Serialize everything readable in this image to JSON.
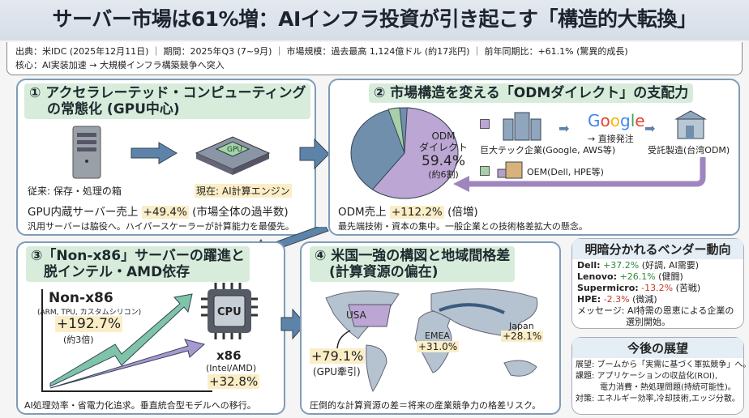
{
  "title": "サーバー市場は61%増：AIインフラ投資が引き起こす「構造的大転換」",
  "info": {
    "line1": "出典：米IDC (2025年12月11日) ｜ 期間：2025年Q3 (7~9月) ｜ 市場規模：過去最高 1,124億ドル (約17兆円) ｜ 前年同期比：+61.1% (驚異的成長)",
    "line2": "核心：AI実装加速 → 大規模インフラ構築競争へ突入"
  },
  "p1": {
    "title1": "① アクセラレーテッド・コンピューティング",
    "title2": "の常態化 (GPU中心)",
    "old_label": "従来: 保存・処理の箱",
    "new_label": "現在: AI計算エンジン",
    "gpu_chip": "GPU",
    "stat_prefix": "GPU内蔵サーバー売上",
    "stat_value": "+49.4%",
    "stat_suffix": "(市場全体の過半数)",
    "note": "汎用サーバーは脇役へ。ハイパースケーラーが計算能力を最優先。"
  },
  "p2": {
    "title": "② 市場構造を変える「ODMダイレクト」の支配力",
    "pie_label1": "ODM",
    "pie_label2": "ダイレクト",
    "pie_value": "59.4%",
    "pie_sub": "(約6割)",
    "pie_share": 59.4,
    "big_tech": "巨大テック企業(Google, AWS等)",
    "google": "Google",
    "direct": "→ 直接発注",
    "odm": "受託製造(台湾ODM)",
    "oem": "OEM(Dell, HPE等)",
    "stat_prefix": "ODM売上",
    "stat_value": "+112.2%",
    "stat_suffix": "(倍増)",
    "note": "最先端技術・資本の集中。一般企業との技術格差拡大の懸念。",
    "colors": {
      "odm": "#bca6d4",
      "oem": "#a8cfa8",
      "other": "#6f8fad"
    }
  },
  "p3": {
    "title1": "③「Non-x86」サーバーの躍進と",
    "title2": "脱インテル・AMD依存",
    "nonx86": "Non-x86",
    "nonx86_sub": "(ARM, TPU, カスタムシリコン)",
    "nonx86_value": "+192.7%",
    "nonx86_note": "(約3倍)",
    "cpu": "CPU",
    "x86": "x86",
    "x86_sub": "(Intel/AMD)",
    "x86_value": "+32.8%",
    "note": "AI処理効率・省電力化追求。垂直統合型モデルへの移行。"
  },
  "p4": {
    "title1": "④ 米国一強の構図と地域間格差",
    "title2": "(計算資源の偏在)",
    "usa": "USA",
    "usa_value": "+79.1%",
    "usa_note": "(GPU牽引)",
    "emea": "EMEA",
    "emea_value": "+31.0%",
    "japan": "Japan",
    "japan_value": "+28.1%",
    "note": "圧倒的な計算資源の差＝将来の産業競争力の格差リスク。"
  },
  "vendors": {
    "title": "明暗分かれるベンダー動向",
    "items": [
      {
        "name": "Dell:",
        "value": "+37.2%",
        "note": "(好調, AI需要)",
        "trend": "up"
      },
      {
        "name": "Lenovo:",
        "value": "+26.1%",
        "note": "(健闘)",
        "trend": "up"
      },
      {
        "name": "Supermicro:",
        "value": "-13.2%",
        "note": "(苦戦)",
        "trend": "down"
      },
      {
        "name": "HPE:",
        "value": "-2.3%",
        "note": "(微減)",
        "trend": "down"
      }
    ],
    "message1": "メッセージ: AI特需の恩恵による企業の",
    "message2": "選別開始。"
  },
  "outlook": {
    "title": "今後の展望",
    "l1": "展望: ブームから「実需に基づく軍拡競争」へ。",
    "l2": "課題: アプリケーションの収益化(ROI),",
    "l3": "電力消費・熱処理問題(持続可能性)。",
    "l4": "対策: エネルギー効率,冷却技術,エッジ分散。"
  }
}
